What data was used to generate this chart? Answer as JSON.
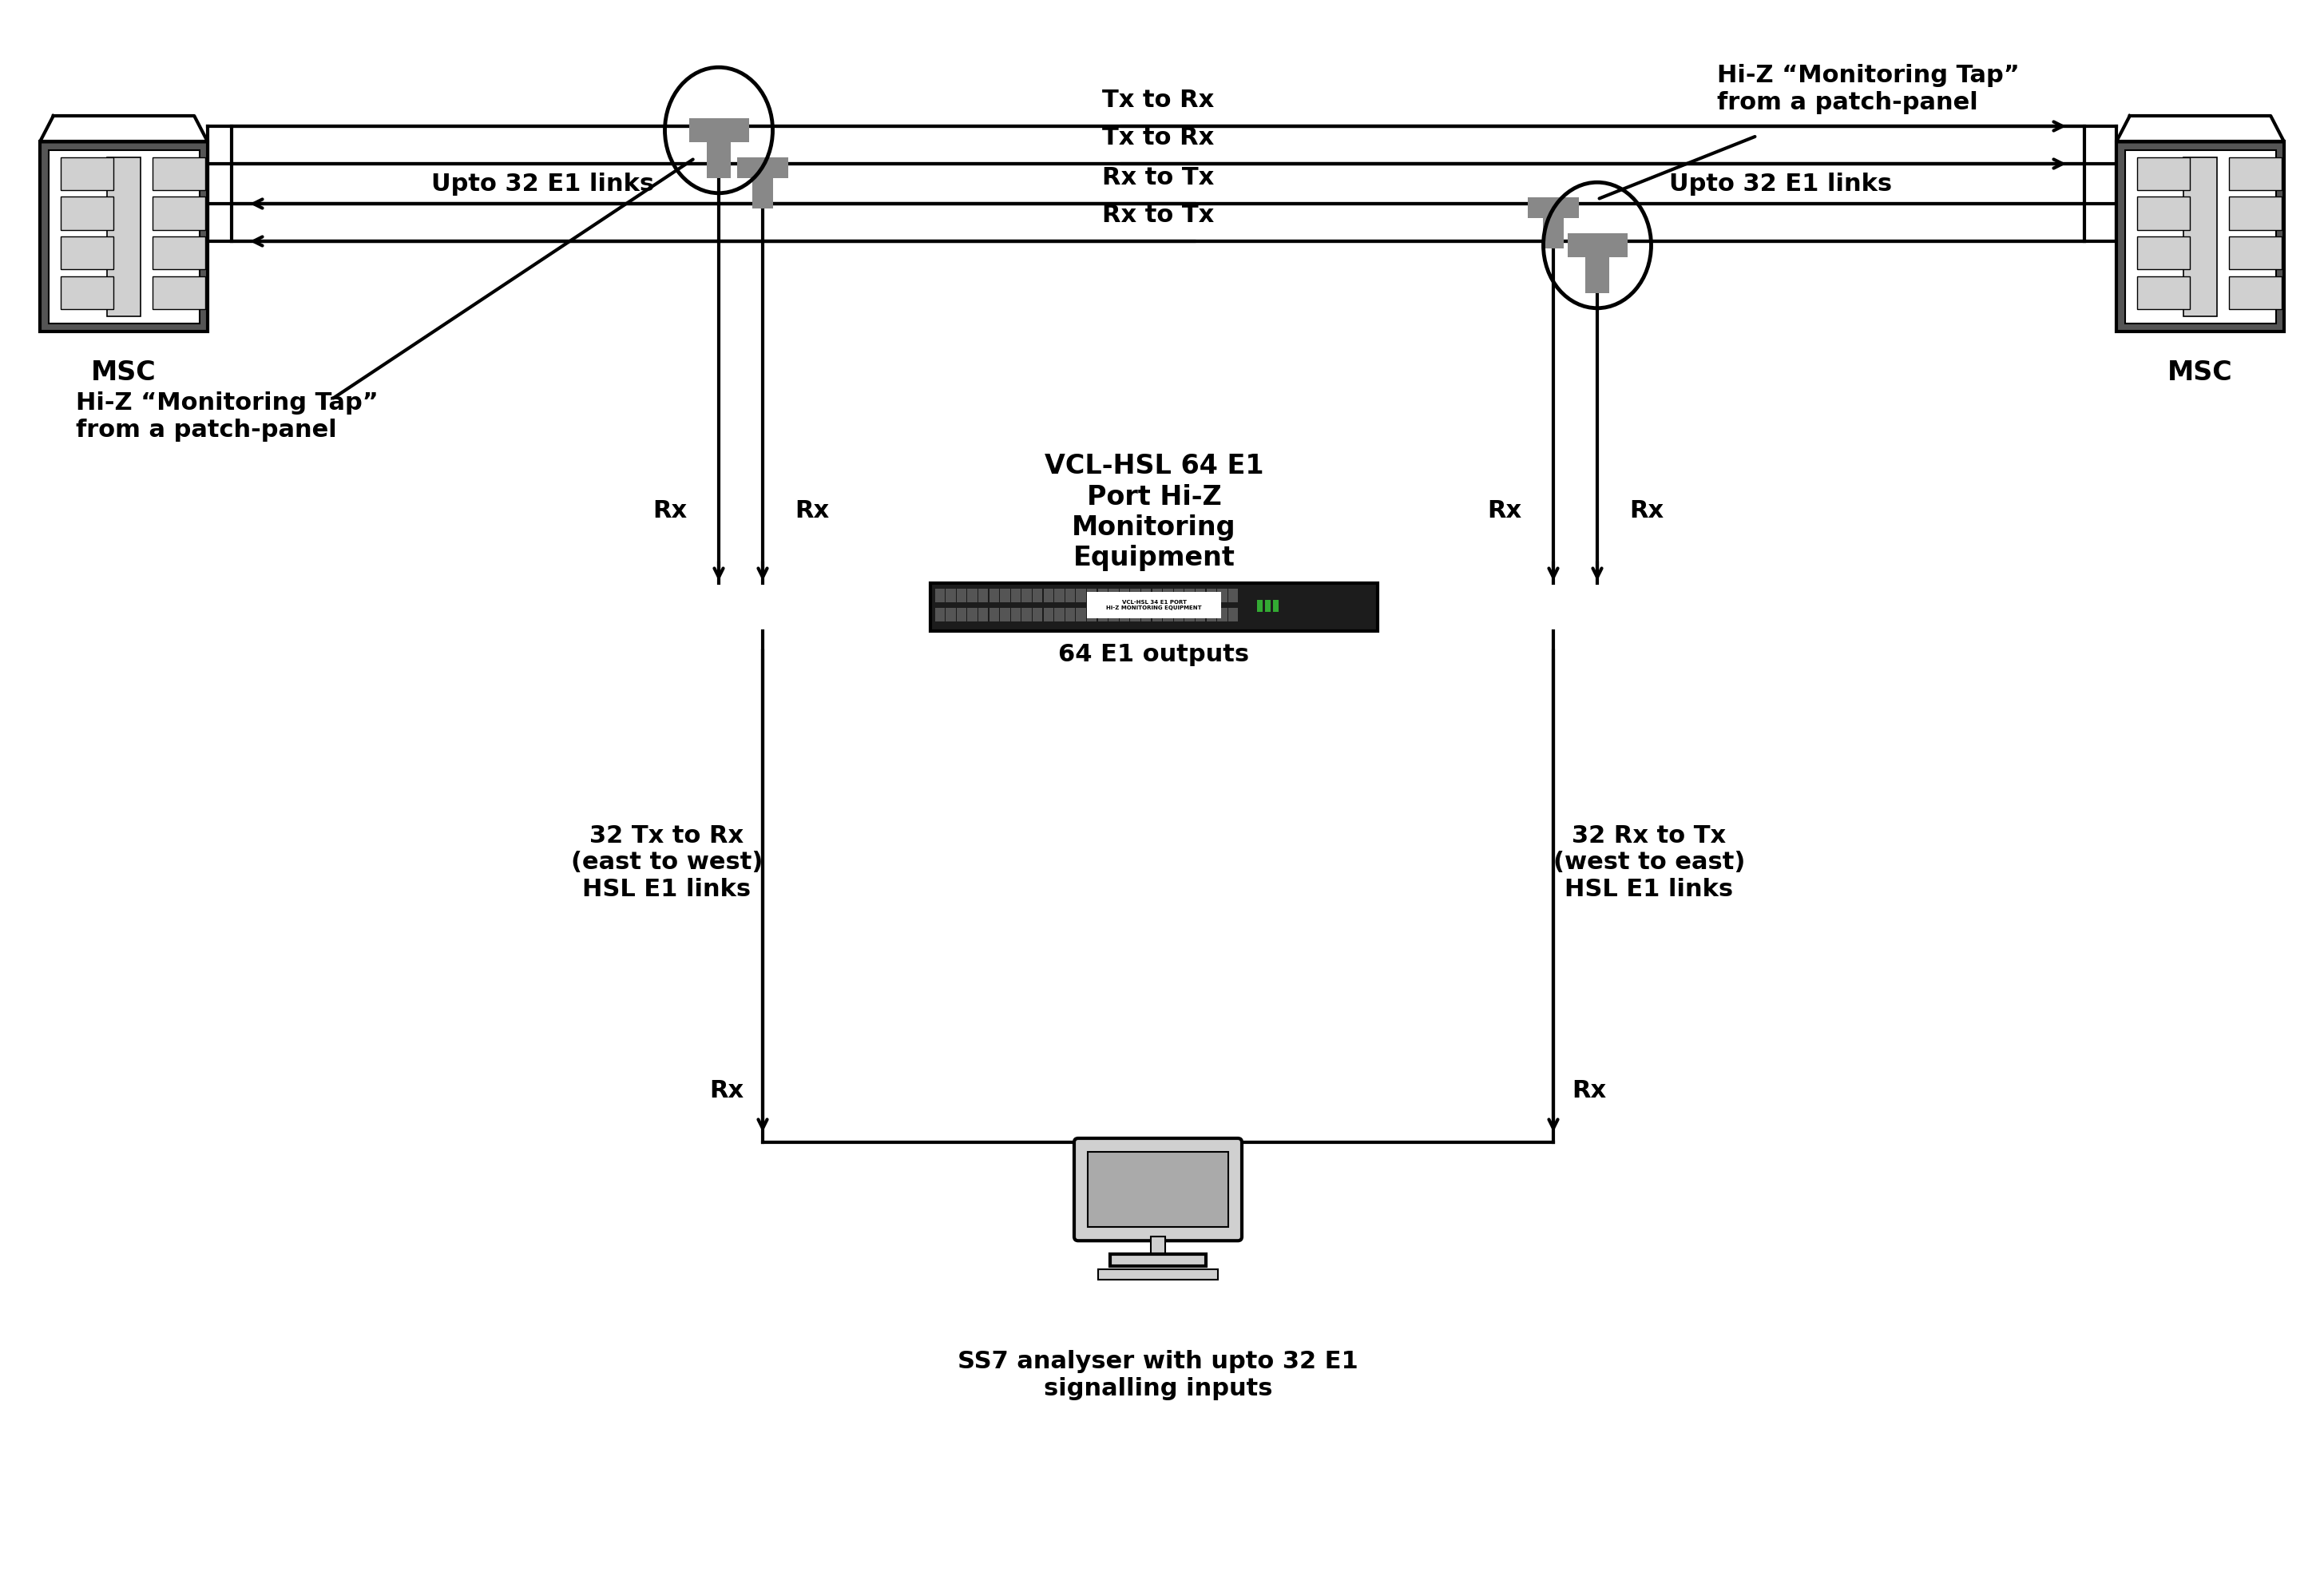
{
  "bg_color": "#ffffff",
  "line_color": "#000000",
  "gray_tap": "#808080",
  "light_gray": "#d0d0d0",
  "dark_gray": "#555555",
  "med_gray": "#888888",
  "equip_dark": "#1a1a1a",
  "monitor_label": "VCL-HSL 64 E1\nPort Hi-Z\nMonitoring\nEquipment",
  "outputs_label": "64 E1 outputs",
  "left_label": "32 Tx to Rx\n(east to west)\nHSL E1 links",
  "right_label": "32 Rx to Tx\n(west to east)\nHSL E1 links",
  "ss7_label": "SS7 analyser with upto 32 E1\nsignalling inputs",
  "msc_label": "MSC",
  "hiz_top_right": "Hi-Z “Monitoring Tap”\nfrom a patch-panel",
  "hiz_bot_left": "Hi-Z “Monitoring Tap”\nfrom a patch-panel",
  "upto_left": "Upto 32 E1 links",
  "upto_right": "Upto 32 E1 links",
  "tx_rx_1": "Tx to Rx",
  "tx_rx_2": "Tx to Rx",
  "rx_tx_1": "Rx to Tx",
  "rx_tx_2": "Rx to Tx"
}
